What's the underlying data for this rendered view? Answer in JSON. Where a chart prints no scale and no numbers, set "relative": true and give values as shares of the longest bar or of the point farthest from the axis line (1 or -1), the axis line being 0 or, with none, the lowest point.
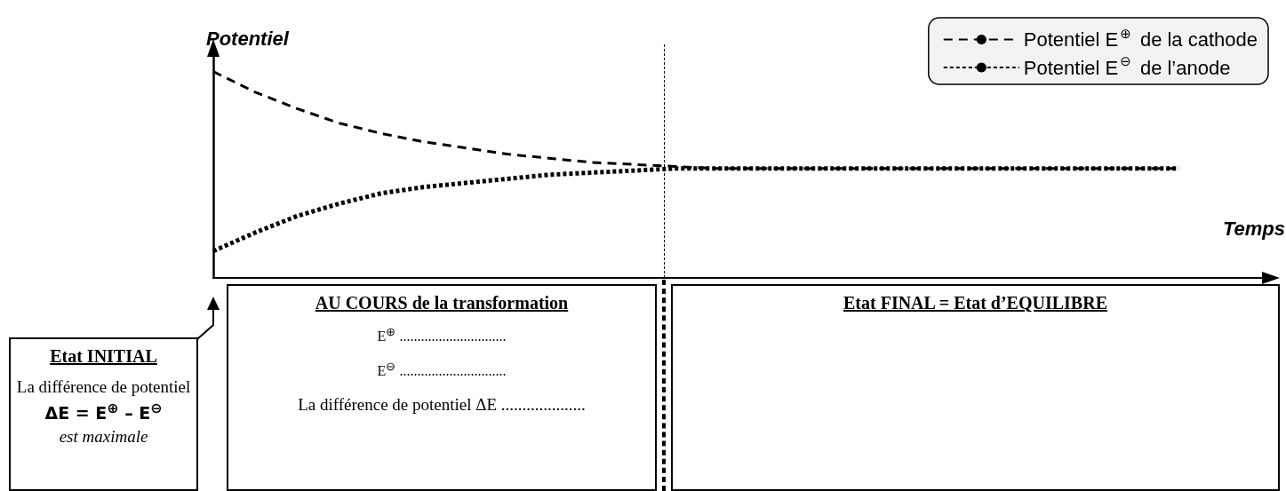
{
  "chart_data": {
    "type": "line",
    "relative": true,
    "ylabel": "Potentiel",
    "xlabel": "Temps",
    "categories": [
      null,
      null,
      null,
      null,
      null,
      null,
      null,
      null,
      null,
      null,
      null,
      null,
      null,
      null,
      null,
      null,
      null,
      null,
      null,
      null,
      null,
      null,
      null,
      null,
      null,
      null
    ],
    "series": [
      {
        "name": "Potentiel E$^{⊕}$ de la cathode",
        "color": "#000000",
        "line_style": "dashed",
        "values": [
          1.0,
          0.9,
          0.82,
          0.75,
          0.7,
          0.66,
          0.63,
          0.6,
          0.58,
          0.56,
          0.55,
          0.54,
          0.53,
          0.53,
          0.53,
          0.53,
          0.53,
          0.53,
          0.53,
          0.53,
          0.53,
          0.53,
          0.53,
          0.53,
          null,
          null
        ]
      },
      {
        "name": "Potentiel E$^{⊖}$ de l’anode",
        "color": "#000000",
        "line_style": "dotted",
        "values": [
          0.13,
          0.22,
          0.3,
          0.36,
          0.41,
          0.44,
          0.46,
          0.48,
          0.5,
          0.51,
          0.52,
          0.53,
          0.53,
          0.53,
          0.53,
          0.53,
          0.53,
          0.53,
          0.53,
          0.53,
          0.53,
          0.53,
          0.53,
          0.53,
          null,
          null
        ]
      }
    ],
    "legend": "top right",
    "marker": "none",
    "grid": false,
    "annotations": [
      "Etat INITIAL",
      "La différence de potentiel",
      "ΔE = E$^{⊕}$ – E$^{⊖}$",
      "est maximale",
      "AU COURS de la transformation",
      "E$^{⊕}$ ..............................",
      "E$^{⊖}$ ..............................",
      "La différence de potentiel ΔE ....................",
      "Etat FINAL = Etat d’EQUILIBRE"
    ]
  }
}
